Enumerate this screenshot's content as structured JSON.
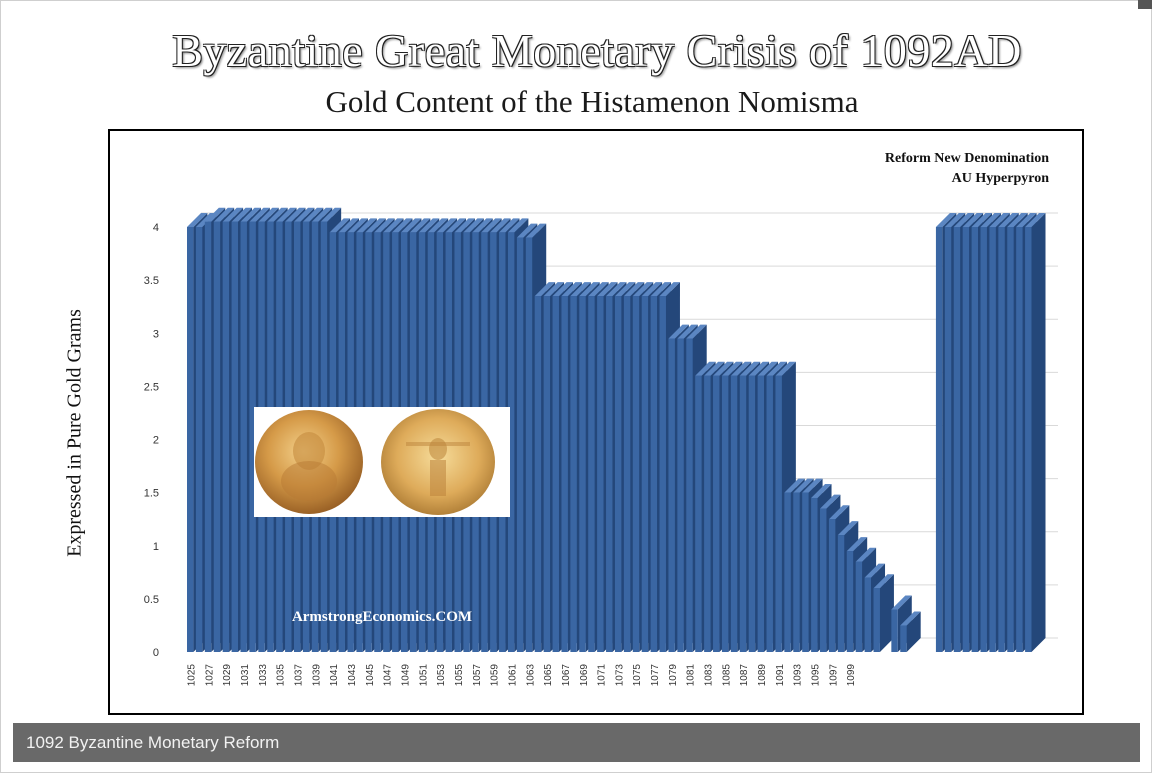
{
  "page": {
    "title": "Byzantine Great Monetary Crisis of 1092AD",
    "subtitle": "Gold Content of the Histamenon Nomisma",
    "caption": "1092 Byzantine Monetary Reform"
  },
  "chart_data": {
    "type": "bar",
    "style": "3d-columns",
    "ylabel": "Expressed in Pure Gold Grams",
    "ylim": [
      0,
      4
    ],
    "yticks": [
      0,
      0.5,
      1,
      1.5,
      2,
      2.5,
      3,
      3.5,
      4
    ],
    "grid": true,
    "bar_color": "#3a66a3",
    "x_start_year": 1025,
    "xtick_labels": [
      "1025",
      "1027",
      "1029",
      "1031",
      "1033",
      "1035",
      "1037",
      "1039",
      "1041",
      "1043",
      "1045",
      "1047",
      "1049",
      "1051",
      "1053",
      "1055",
      "1057",
      "1059",
      "1061",
      "1063",
      "1065",
      "1067",
      "1069",
      "1071",
      "1073",
      "1075",
      "1077",
      "1079",
      "1081",
      "1083",
      "1085",
      "1087",
      "1089",
      "1091",
      "1093",
      "1095",
      "1097",
      "1099"
    ],
    "values": [
      4.0,
      4.0,
      4.05,
      4.05,
      4.05,
      4.05,
      4.05,
      4.05,
      4.05,
      4.05,
      4.05,
      4.05,
      4.05,
      4.05,
      4.05,
      4.05,
      3.95,
      3.95,
      3.95,
      3.95,
      3.95,
      3.95,
      3.95,
      3.95,
      3.95,
      3.95,
      3.95,
      3.95,
      3.95,
      3.95,
      3.95,
      3.95,
      3.95,
      3.95,
      3.95,
      3.95,
      3.95,
      3.9,
      3.9,
      3.35,
      3.35,
      3.35,
      3.35,
      3.35,
      3.35,
      3.35,
      3.35,
      3.35,
      3.35,
      3.35,
      3.35,
      3.35,
      3.35,
      3.35,
      2.95,
      2.95,
      2.95,
      2.6,
      2.6,
      2.6,
      2.6,
      2.6,
      2.6,
      2.6,
      2.6,
      2.6,
      2.6,
      1.5,
      1.5,
      1.5,
      1.45,
      1.35,
      1.25,
      1.1,
      0.95,
      0.85,
      0.7,
      0.6,
      0,
      0.4,
      0.25,
      0,
      0,
      0,
      4.0,
      4.0,
      4.0,
      4.0,
      4.0,
      4.0,
      4.0,
      4.0,
      4.0,
      4.0,
      4.0
    ],
    "annotations": [
      {
        "id": "reform",
        "lines": [
          "Reform  New Denomination",
          "AU Hyperpyron"
        ]
      },
      {
        "id": "watermark",
        "text": "ArmstrongEconomics.COM"
      }
    ],
    "inset_image": "two gold Byzantine coins (histamenon nomisma)"
  }
}
